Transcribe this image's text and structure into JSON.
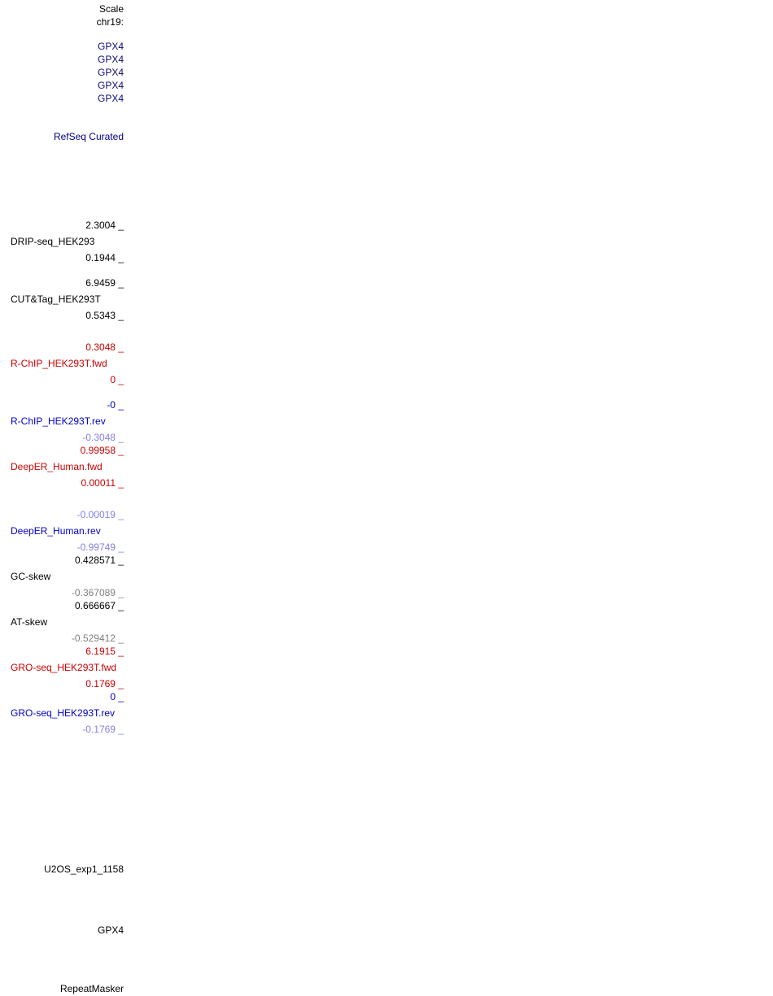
{
  "colors": {
    "black": "#000000",
    "navy": "#000080",
    "gene_blue": "#0c0c78",
    "red": "#cc0000",
    "blue": "#0000cc",
    "light_blue": "#8080e6",
    "gray": "#808080"
  },
  "header": {
    "scale_label": "Scale",
    "chrom_label": "chr19:"
  },
  "gene_labels": [
    "GPX4",
    "GPX4",
    "GPX4",
    "GPX4",
    "GPX4"
  ],
  "refseq": {
    "track_name": "RefSeq Curated"
  },
  "tracks": {
    "drip_seq": {
      "max": "2.3004 _",
      "name": "DRIP-seq_HEK293",
      "min": "0.1944 _"
    },
    "cut_tag": {
      "max": "6.9459 _",
      "name": "CUT&Tag_HEK293T",
      "min": "0.5343 _"
    },
    "rchip_fwd": {
      "max": "0.3048 _",
      "name": "R-ChIP_HEK293T.fwd",
      "min": "0 _"
    },
    "rchip_rev": {
      "max": "-0 _",
      "name": "R-ChIP_HEK293T.rev",
      "min": "-0.3048 _"
    },
    "deeper_fwd": {
      "max": "0.99958 _",
      "name": "DeepER_Human.fwd",
      "min": "0.00011 _"
    },
    "deeper_rev": {
      "max": "-0.00019 _",
      "name": "DeepER_Human.rev",
      "min": "-0.99749 _"
    },
    "gc_skew": {
      "max": "0.428571 _",
      "name": "GC-skew",
      "min": "-0.367089 _"
    },
    "at_skew": {
      "max": "0.666667 _",
      "name": "AT-skew",
      "min": "-0.529412 _"
    },
    "gro_fwd": {
      "max": "6.1915 _",
      "name": "GRO-seq_HEK293T.fwd",
      "min": "0.1769 _"
    },
    "gro_rev": {
      "max": "0 _",
      "name": "GRO-seq_HEK293T.rev",
      "min": "-0.1769 _"
    }
  },
  "bottom": {
    "u2os": "U2OS_exp1_1158",
    "gene": "GPX4",
    "repeatmasker": "RepeatMasker"
  }
}
